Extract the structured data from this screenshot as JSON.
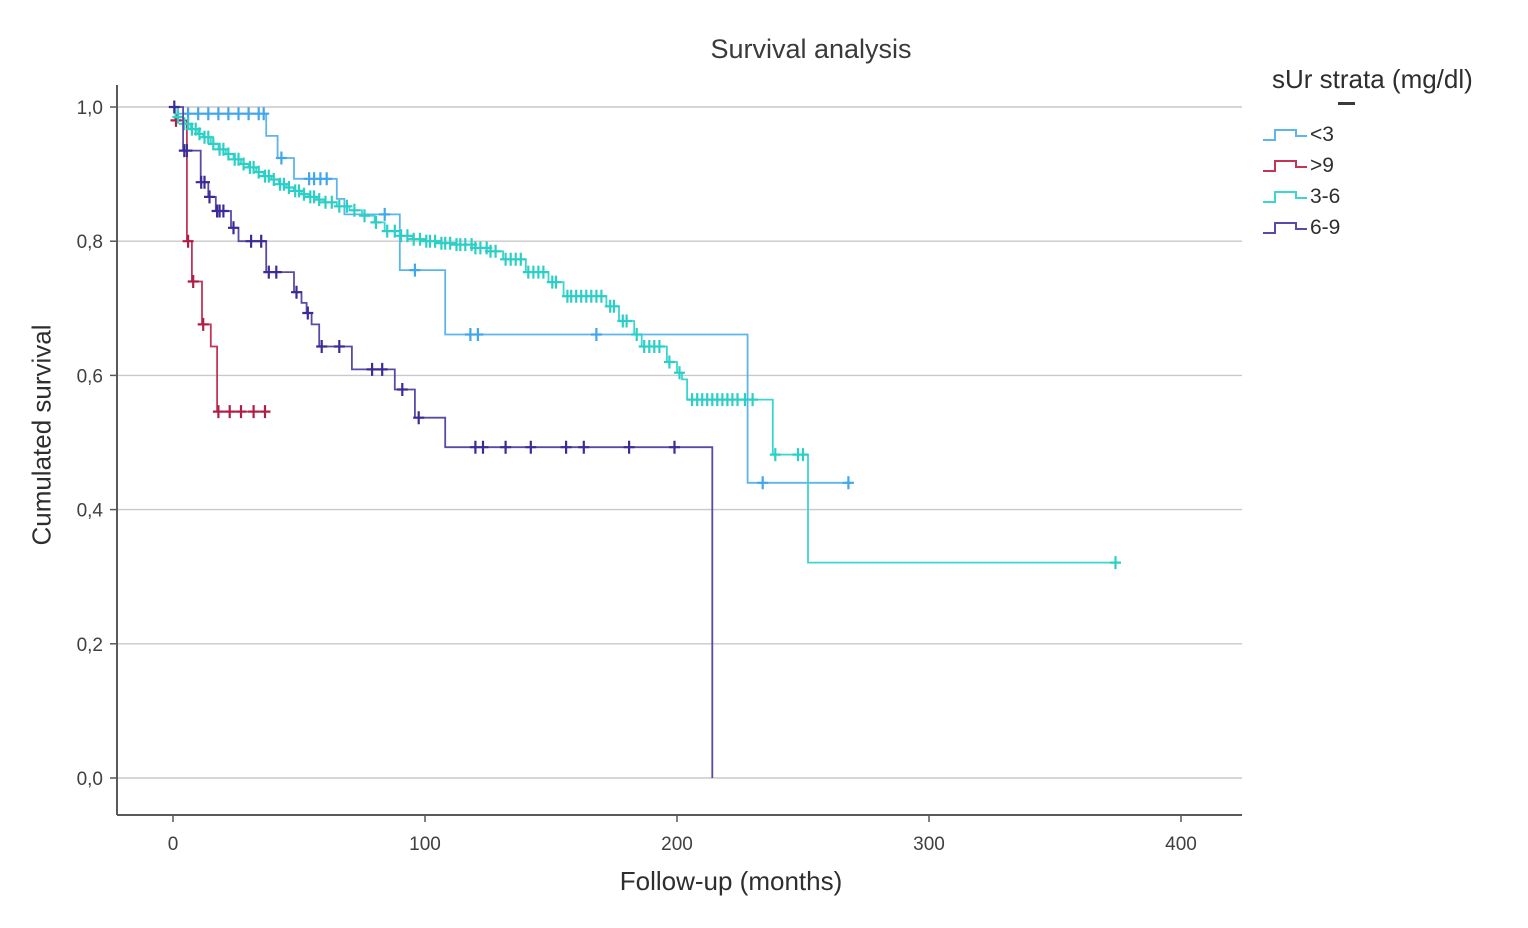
{
  "title": "Survival analysis",
  "x_axis": {
    "label": "Follow-up (months)",
    "ticks": [
      {
        "value": 0,
        "label": "0"
      },
      {
        "value": 100,
        "label": "100"
      },
      {
        "value": 200,
        "label": "200"
      },
      {
        "value": 300,
        "label": "300"
      },
      {
        "value": 400,
        "label": "400"
      }
    ]
  },
  "y_axis": {
    "label": "Cumulated survival",
    "ticks": [
      {
        "value": 1.0,
        "label": "1,0"
      },
      {
        "value": 0.8,
        "label": "0,8"
      },
      {
        "value": 0.6,
        "label": "0,6"
      },
      {
        "value": 0.4,
        "label": "0,4"
      },
      {
        "value": 0.2,
        "label": "0,2"
      },
      {
        "value": 0.0,
        "label": "0,0"
      }
    ]
  },
  "legend": {
    "title": "sUr strata (mg/dl)"
  },
  "colors": {
    "grid": "#C9C9C9",
    "axis": "#595959",
    "tick_text": "#404040"
  },
  "chart_data": {
    "type": "line",
    "subtype": "kaplan-meier-step",
    "title": "Survival analysis",
    "xlabel": "Follow-up (months)",
    "ylabel": "Cumulated survival",
    "xlim": [
      -22,
      424
    ],
    "ylim": [
      0.0,
      1.05
    ],
    "grid": "horizontal",
    "legend_position": "right",
    "censor_mark": "plus",
    "series": [
      {
        "name": "<3",
        "color": "#5CB5EC",
        "censor_color": "#41A6EA",
        "end_t": 270,
        "steps": [
          [
            0,
            1.0
          ],
          [
            2,
            0.99
          ],
          [
            37,
            0.957
          ],
          [
            41.5,
            0.924
          ],
          [
            48,
            0.893
          ],
          [
            65,
            0.863
          ],
          [
            68,
            0.84
          ],
          [
            90,
            0.757
          ],
          [
            108,
            0.661
          ],
          [
            228,
            0.44
          ]
        ],
        "censors": [
          6,
          10,
          14,
          18,
          22,
          26,
          30,
          34,
          36,
          43,
          54,
          56,
          58.5,
          61,
          84,
          96,
          118,
          121,
          168,
          234,
          268
        ]
      },
      {
        "name": ">9",
        "color": "#C23556",
        "censor_color": "#B01E48",
        "end_t": 38.5,
        "steps": [
          [
            0,
            1.0
          ],
          [
            1,
            0.98
          ],
          [
            5.5,
            0.8
          ],
          [
            7.5,
            0.74
          ],
          [
            11.5,
            0.676
          ],
          [
            15,
            0.643
          ],
          [
            17.5,
            0.546
          ]
        ],
        "censors": [
          1.2,
          6,
          8,
          12,
          18,
          22.5,
          27,
          32,
          36.5
        ]
      },
      {
        "name": "3-6",
        "color": "#3BD6CD",
        "censor_color": "#2BCFC6",
        "end_t": 375,
        "steps": [
          [
            0,
            1.0
          ],
          [
            1,
            0.985
          ],
          [
            4,
            0.975
          ],
          [
            7,
            0.967
          ],
          [
            10,
            0.96
          ],
          [
            12,
            0.955
          ],
          [
            15,
            0.945
          ],
          [
            18,
            0.937
          ],
          [
            21,
            0.93
          ],
          [
            24,
            0.922
          ],
          [
            27,
            0.915
          ],
          [
            30,
            0.91
          ],
          [
            33,
            0.903
          ],
          [
            36,
            0.897
          ],
          [
            39,
            0.892
          ],
          [
            42,
            0.885
          ],
          [
            45,
            0.88
          ],
          [
            48,
            0.875
          ],
          [
            51,
            0.87
          ],
          [
            54,
            0.866
          ],
          [
            57,
            0.862
          ],
          [
            60,
            0.858
          ],
          [
            65,
            0.852
          ],
          [
            70,
            0.846
          ],
          [
            75,
            0.838
          ],
          [
            80,
            0.828
          ],
          [
            84,
            0.815
          ],
          [
            90,
            0.808
          ],
          [
            95,
            0.803
          ],
          [
            100,
            0.8
          ],
          [
            106,
            0.797
          ],
          [
            112,
            0.795
          ],
          [
            120,
            0.79
          ],
          [
            126,
            0.785
          ],
          [
            131,
            0.773
          ],
          [
            140,
            0.754
          ],
          [
            149,
            0.739
          ],
          [
            155,
            0.718
          ],
          [
            172,
            0.703
          ],
          [
            177,
            0.681
          ],
          [
            183,
            0.661
          ],
          [
            186,
            0.643
          ],
          [
            196,
            0.62
          ],
          [
            200,
            0.604
          ],
          [
            202,
            0.594
          ],
          [
            204,
            0.564
          ],
          [
            238,
            0.482
          ],
          [
            252,
            0.321
          ]
        ],
        "censors": [
          2,
          4.5,
          6,
          7.5,
          9,
          10.5,
          12.5,
          14,
          16,
          18.5,
          20,
          22,
          24.5,
          26,
          28,
          30.5,
          32,
          34,
          36.5,
          38,
          40,
          42.5,
          44,
          46,
          48.5,
          50,
          52,
          54.5,
          56,
          58,
          60.5,
          63,
          66,
          69,
          72,
          76,
          80.5,
          85,
          88,
          90.5,
          93,
          95.5,
          98,
          100.5,
          102,
          104,
          106.5,
          108,
          110,
          112.5,
          114,
          116,
          118.5,
          120,
          122,
          124.5,
          126,
          128,
          132,
          134,
          136,
          138,
          141,
          143,
          145,
          147,
          150.5,
          152,
          156.5,
          158,
          160,
          162,
          164,
          166,
          168,
          170,
          173.5,
          175,
          178.5,
          180,
          184,
          187,
          189,
          191,
          193,
          197,
          201,
          206,
          208,
          210,
          212,
          214,
          216,
          218,
          220,
          222,
          224,
          227,
          230,
          239,
          248,
          250,
          374
        ]
      },
      {
        "name": "6-9",
        "color": "#5B4AA5",
        "censor_color": "#3A2B96",
        "end_t": 214,
        "steps": [
          [
            0,
            1.0
          ],
          [
            4,
            0.935
          ],
          [
            11,
            0.888
          ],
          [
            14,
            0.866
          ],
          [
            17,
            0.845
          ],
          [
            23,
            0.82
          ],
          [
            26,
            0.8
          ],
          [
            37,
            0.754
          ],
          [
            48,
            0.724
          ],
          [
            51,
            0.708
          ],
          [
            53,
            0.693
          ],
          [
            55,
            0.676
          ],
          [
            58,
            0.643
          ],
          [
            71,
            0.609
          ],
          [
            88,
            0.579
          ],
          [
            96,
            0.537
          ],
          [
            108,
            0.493
          ],
          [
            214,
            0.0
          ]
        ],
        "censors": [
          0.5,
          4.5,
          5.5,
          11.2,
          12.5,
          14.5,
          17.5,
          18.5,
          20,
          24,
          31,
          35,
          38,
          41,
          49,
          53.5,
          59,
          66,
          79,
          83,
          91,
          97.5,
          120,
          123,
          132,
          142,
          156,
          163,
          181,
          199
        ]
      }
    ]
  }
}
